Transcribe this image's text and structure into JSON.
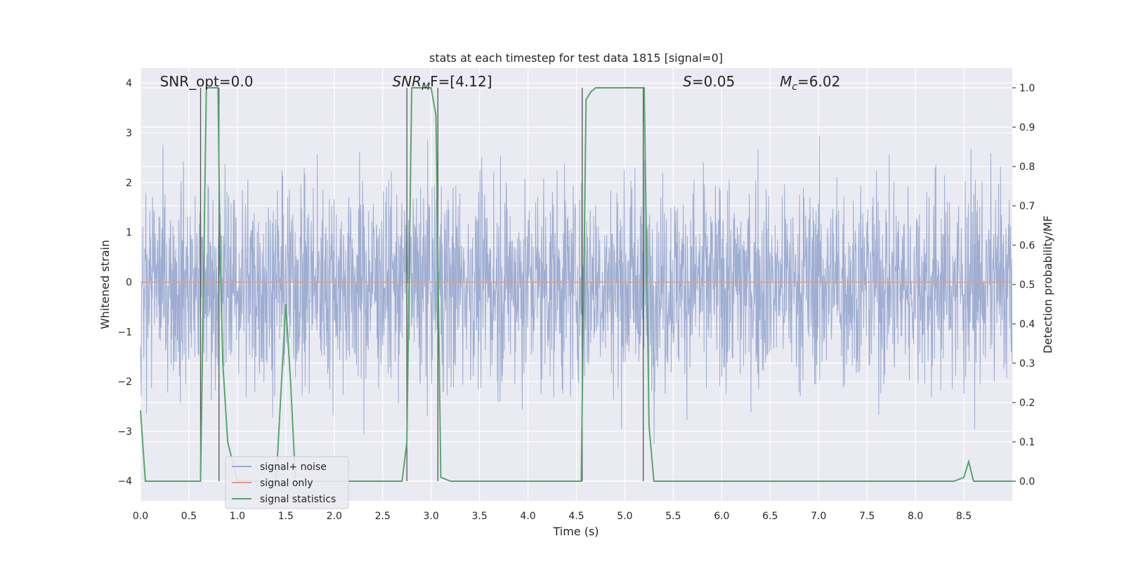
{
  "chart_data": {
    "type": "line",
    "title": "stats at each timestep for test data 1815 [signal=0]",
    "xlabel": "Time (s)",
    "ylabel": "Whitened strain",
    "y2label": "Detection probability/MF",
    "xlim": [
      0.0,
      9.0
    ],
    "ylim": [
      -4.4,
      4.3
    ],
    "y2lim": [
      -0.05,
      1.05
    ],
    "xticks": [
      "0.0",
      "0.5",
      "1.0",
      "1.5",
      "2.0",
      "2.5",
      "3.0",
      "3.5",
      "4.0",
      "4.5",
      "5.0",
      "5.5",
      "6.0",
      "6.5",
      "7.0",
      "7.5",
      "8.0",
      "8.5"
    ],
    "yticks": [
      "−4",
      "−3",
      "−2",
      "−1",
      "0",
      "1",
      "2",
      "3",
      "4"
    ],
    "y2ticks": [
      "0.0",
      "0.1",
      "0.2",
      "0.3",
      "0.4",
      "0.5",
      "0.6",
      "0.7",
      "0.8",
      "0.9",
      "1.0"
    ],
    "grid": true,
    "legend_placement": "lower-left",
    "annotations": [
      {
        "id": "snr_opt",
        "pre": "SNR_opt=0.0",
        "x": 0.2
      },
      {
        "id": "snr_mf",
        "pre": "SNR",
        "sub": "M",
        "mid": "F=[4.12]",
        "x": 2.6
      },
      {
        "id": "s_val",
        "pre": "S",
        "mid": "=0.05",
        "x": 5.6
      },
      {
        "id": "mc_val",
        "pre": "M",
        "sub": "c",
        "mid": "=6.02",
        "x": 6.6
      }
    ],
    "series": [
      {
        "name": "signal+ noise",
        "color": "#9aaad0",
        "envelope": {
          "typical": 1.6,
          "peak": 3.8
        }
      },
      {
        "name": "signal only",
        "color": "#e0a07f",
        "values_constant": 0.0
      },
      {
        "name": "signal statistics",
        "color": "#55a868",
        "x": [
          0.0,
          0.05,
          0.1,
          0.15,
          0.2,
          0.3,
          0.4,
          0.5,
          0.6,
          0.62,
          0.68,
          0.7,
          0.75,
          0.8,
          0.82,
          0.85,
          0.9,
          1.0,
          1.1,
          1.2,
          1.3,
          1.4,
          1.5,
          1.55,
          1.6,
          1.7,
          1.8,
          2.0,
          2.2,
          2.4,
          2.6,
          2.7,
          2.75,
          2.8,
          2.85,
          2.9,
          3.0,
          3.05,
          3.1,
          3.2,
          3.3,
          3.5,
          4.0,
          4.5,
          4.55,
          4.6,
          4.65,
          4.7,
          4.8,
          4.9,
          5.0,
          5.1,
          5.2,
          5.25,
          5.3,
          5.35,
          5.5,
          6.0,
          7.0,
          8.0,
          8.4,
          8.5,
          8.55,
          8.6,
          8.7,
          8.9,
          9.0
        ],
        "values": [
          0.18,
          0.0,
          0.0,
          0.0,
          0.0,
          0.0,
          0.0,
          0.0,
          0.0,
          0.0,
          1.0,
          1.0,
          1.0,
          1.0,
          0.6,
          0.3,
          0.1,
          0.0,
          0.0,
          0.0,
          0.0,
          0.0,
          0.45,
          0.25,
          0.0,
          0.0,
          0.0,
          0.0,
          0.0,
          0.0,
          0.0,
          0.0,
          0.1,
          1.0,
          1.0,
          1.0,
          1.0,
          0.93,
          0.01,
          0.0,
          0.0,
          0.0,
          0.0,
          0.0,
          0.0,
          0.97,
          0.99,
          1.0,
          1.0,
          1.0,
          1.0,
          1.0,
          1.0,
          0.14,
          0.0,
          0.0,
          0.0,
          0.0,
          0.0,
          0.0,
          0.0,
          0.01,
          0.05,
          0.0,
          0.0,
          0.0,
          0.0
        ]
      }
    ],
    "vlines_x": [
      0.62,
      0.81,
      2.75,
      3.07,
      4.56,
      5.19
    ]
  }
}
